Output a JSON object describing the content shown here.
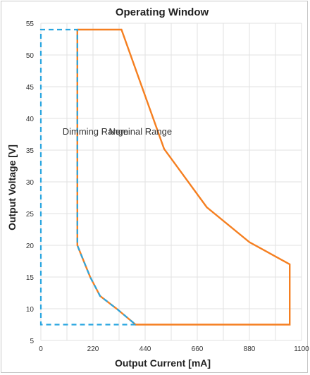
{
  "chart_data": {
    "type": "line",
    "title": "Operating Window",
    "xlabel": "Output Current [mA]",
    "ylabel": "Output Voltage [V]",
    "xlim": [
      0,
      1100
    ],
    "ylim": [
      5,
      55
    ],
    "x_ticks": [
      "0",
      "220",
      "440",
      "660",
      "880",
      "1100"
    ],
    "y_ticks": [
      "5",
      "10",
      "15",
      "20",
      "25",
      "30",
      "35",
      "40",
      "45",
      "50",
      "55"
    ],
    "x_tick_values": [
      0,
      220,
      440,
      660,
      880,
      1100
    ],
    "y_tick_values": [
      5,
      10,
      15,
      20,
      25,
      30,
      35,
      40,
      45,
      50,
      55
    ],
    "grid": true,
    "annotations": [
      {
        "text": "Dimming Range",
        "x": 230,
        "y": 38
      },
      {
        "text": "Nominal Range",
        "x": 420,
        "y": 38
      }
    ],
    "series": [
      {
        "color": "#f57f20",
        "style": "solid",
        "points": [
          [
            154,
            54
          ],
          [
            340,
            54
          ],
          [
            520,
            35.2
          ],
          [
            700,
            26
          ],
          [
            880,
            20.5
          ],
          [
            1050,
            17
          ],
          [
            1050,
            7.5
          ],
          [
            400,
            7.5
          ],
          [
            320,
            10
          ],
          [
            250,
            12
          ],
          [
            208,
            15
          ],
          [
            170,
            18.5
          ],
          [
            154,
            20
          ],
          [
            154,
            54
          ]
        ]
      },
      {
        "color": "#2aa6e0",
        "style": "dashed",
        "points": [
          [
            400,
            7.5
          ],
          [
            0,
            7.5
          ],
          [
            0,
            54
          ],
          [
            154,
            54
          ],
          [
            154,
            20
          ],
          [
            170,
            18.5
          ],
          [
            208,
            15
          ],
          [
            250,
            12
          ],
          [
            320,
            10
          ],
          [
            400,
            7.5
          ]
        ]
      }
    ]
  }
}
